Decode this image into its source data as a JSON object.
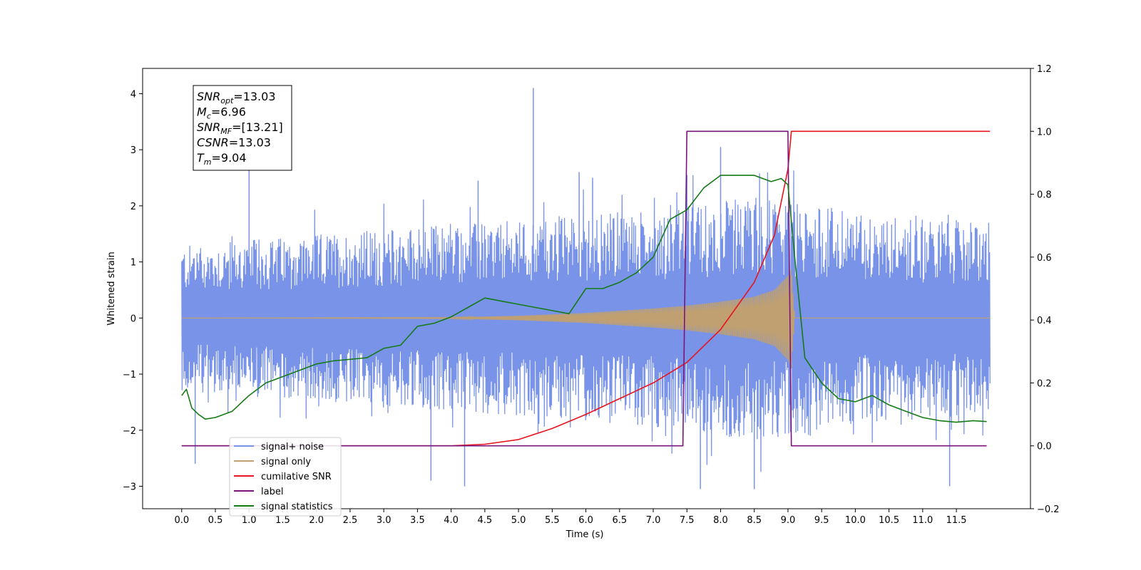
{
  "chart_data": {
    "type": "line",
    "xlabel": "Time (s)",
    "ylabel": "Whitened strain",
    "xlim": [
      -0.58,
      12.6
    ],
    "ylim": [
      -3.4,
      4.45
    ],
    "y2lim": [
      -0.2,
      1.2
    ],
    "x_ticks": [
      "0.0",
      "0.5",
      "1.0",
      "1.5",
      "2.0",
      "2.5",
      "3.0",
      "3.5",
      "4.0",
      "4.5",
      "5.0",
      "5.5",
      "6.0",
      "6.5",
      "7.0",
      "7.5",
      "8.0",
      "8.5",
      "9.0",
      "9.5",
      "10.0",
      "10.5",
      "11.0",
      "11.5"
    ],
    "y_ticks": [
      "−3",
      "−2",
      "−1",
      "0",
      "1",
      "2",
      "3",
      "4"
    ],
    "y2_ticks": [
      "−0.2",
      "0.0",
      "0.2",
      "0.4",
      "0.6",
      "0.8",
      "1.0",
      "1.2"
    ],
    "legend_placement": "lower-left",
    "grid": false,
    "annotation": {
      "lines": [
        {
          "base": "SNR",
          "sub": "opt",
          "rest": "=13.03"
        },
        {
          "base": "M",
          "sub": "c",
          "rest": "=6.96"
        },
        {
          "base": "SNR",
          "sub": "MF",
          "rest": "=[13.21]"
        },
        {
          "base": "CSNR",
          "sub": "",
          "rest": "=13.03"
        },
        {
          "base": "T",
          "sub": "m",
          "rest": "=9.04"
        }
      ]
    },
    "series": [
      {
        "name": "signal+ noise",
        "color": "#7893e8",
        "axis": "left",
        "x_range": [
          0.0,
          12.0
        ],
        "envelope_upper": [
          1.3,
          1.35,
          1.4,
          1.45,
          1.5,
          1.55,
          1.6,
          1.65,
          1.7,
          1.7,
          1.75,
          1.8,
          1.85,
          1.9,
          1.95,
          2.0,
          2.1,
          2.2,
          2.1,
          2.0,
          1.9,
          1.85,
          1.8,
          1.75,
          1.7
        ],
        "envelope_lower": [
          -1.3,
          -1.35,
          -1.4,
          -1.45,
          -1.5,
          -1.55,
          -1.6,
          -1.65,
          -1.7,
          -1.7,
          -1.75,
          -1.8,
          -1.85,
          -1.9,
          -1.95,
          -2.0,
          -2.1,
          -2.2,
          -2.1,
          -2.0,
          -1.9,
          -1.85,
          -1.8,
          -1.75,
          -1.7
        ],
        "peaks": [
          [
            5.22,
            4.1
          ],
          [
            1.0,
            2.65
          ],
          [
            8.0,
            3.05
          ],
          [
            5.9,
            2.6
          ],
          [
            4.4,
            2.45
          ],
          [
            7.5,
            2.55
          ],
          [
            6.1,
            2.5
          ],
          [
            4.2,
            -3.0
          ],
          [
            7.7,
            -3.05
          ],
          [
            8.5,
            -3.05
          ],
          [
            11.4,
            -3.0
          ],
          [
            3.7,
            -2.9
          ],
          [
            0.2,
            -2.6
          ]
        ]
      },
      {
        "name": "signal only",
        "color": "#c0a071",
        "axis": "left",
        "x": [
          0.0,
          4.0,
          5.0,
          6.0,
          6.5,
          7.0,
          7.5,
          8.0,
          8.5,
          8.8,
          9.0,
          9.05,
          9.1,
          12.0
        ],
        "amplitude": [
          0.0,
          0.01,
          0.04,
          0.09,
          0.13,
          0.17,
          0.22,
          0.29,
          0.38,
          0.5,
          0.75,
          0.9,
          0.0,
          0.0
        ]
      },
      {
        "name": "cumilative SNR",
        "color": "#e8141e",
        "axis": "right",
        "x": [
          0.0,
          4.0,
          4.5,
          5.0,
          5.5,
          6.0,
          6.5,
          7.0,
          7.5,
          8.0,
          8.5,
          8.8,
          9.0,
          9.05,
          12.0
        ],
        "values": [
          0.0,
          0.0,
          0.005,
          0.02,
          0.055,
          0.1,
          0.15,
          0.2,
          0.265,
          0.37,
          0.52,
          0.67,
          0.88,
          1.0,
          1.0
        ]
      },
      {
        "name": "label",
        "color": "#7a147a",
        "axis": "right",
        "x": [
          0.0,
          7.44,
          7.5,
          9.0,
          9.05,
          11.95
        ],
        "values": [
          0.0,
          0.0,
          1.0,
          1.0,
          0.0,
          0.0
        ]
      },
      {
        "name": "signal statistics",
        "color": "#167a16",
        "axis": "right",
        "x": [
          0.0,
          0.07,
          0.15,
          0.25,
          0.35,
          0.5,
          0.75,
          1.0,
          1.25,
          1.5,
          1.75,
          2.0,
          2.25,
          2.5,
          2.75,
          3.0,
          3.25,
          3.5,
          3.75,
          4.0,
          4.25,
          4.5,
          4.75,
          5.0,
          5.25,
          5.5,
          5.75,
          6.0,
          6.25,
          6.5,
          6.75,
          7.0,
          7.25,
          7.5,
          7.75,
          8.0,
          8.25,
          8.5,
          8.75,
          8.9,
          9.0,
          9.1,
          9.25,
          9.5,
          9.75,
          10.0,
          10.25,
          10.5,
          10.75,
          11.0,
          11.25,
          11.5,
          11.75,
          11.95
        ],
        "values": [
          0.16,
          0.18,
          0.12,
          0.1,
          0.085,
          0.09,
          0.11,
          0.16,
          0.2,
          0.22,
          0.24,
          0.26,
          0.27,
          0.275,
          0.28,
          0.31,
          0.32,
          0.38,
          0.39,
          0.41,
          0.44,
          0.47,
          0.46,
          0.45,
          0.44,
          0.43,
          0.42,
          0.5,
          0.5,
          0.52,
          0.55,
          0.6,
          0.72,
          0.75,
          0.82,
          0.86,
          0.86,
          0.86,
          0.84,
          0.85,
          0.83,
          0.6,
          0.28,
          0.2,
          0.15,
          0.14,
          0.16,
          0.13,
          0.11,
          0.09,
          0.08,
          0.075,
          0.08,
          0.077
        ]
      }
    ]
  }
}
